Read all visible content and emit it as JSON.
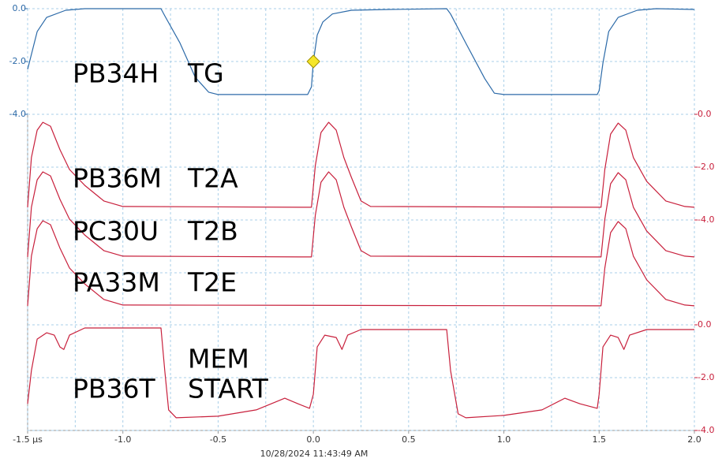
{
  "chart_data": {
    "type": "line",
    "timestamp": "10/28/2024 11:43:49 AM",
    "grid": true,
    "xlim": [
      -1.5,
      2.0
    ],
    "xticks": [
      {
        "value": -1.5,
        "label": "-1.5 μs"
      },
      {
        "value": -1.0,
        "label": "-1.0"
      },
      {
        "value": -0.5,
        "label": "-0.5"
      },
      {
        "value": 0,
        "label": "0.0"
      },
      {
        "value": 0.5,
        "label": "0.5"
      },
      {
        "value": 1.0,
        "label": "1.0"
      },
      {
        "value": 1.5,
        "label": "1.5"
      },
      {
        "value": 2.0,
        "label": "2.0"
      }
    ],
    "y_axes": [
      {
        "side": "left",
        "color": "#2c6aa8",
        "ylim": [
          -4,
          0
        ],
        "yticks": [
          {
            "value": 0,
            "label": "0.0"
          },
          {
            "value": -2,
            "label": "-2.0"
          },
          {
            "value": -4,
            "label": "-4.0"
          }
        ]
      },
      {
        "side": "right",
        "color": "#c8203c",
        "ylim": [
          -4,
          0
        ],
        "yticks": [
          {
            "value": 0,
            "label": "0.0"
          },
          {
            "value": -2,
            "label": "-2.0"
          },
          {
            "value": -4,
            "label": "-4.0"
          }
        ]
      },
      {
        "side": "right",
        "color": "#c8203c",
        "ylim": [
          -4,
          0
        ],
        "yticks": [
          {
            "value": 0,
            "label": "0.0"
          },
          {
            "value": -2,
            "label": "-2.0"
          },
          {
            "value": -4,
            "label": "-4.0"
          }
        ]
      }
    ],
    "series": [
      {
        "name": "PB34H",
        "signal": [
          "TG"
        ],
        "color": "#2c6aa8",
        "axis": 0,
        "x": [
          -1.5,
          -1.45,
          -1.4,
          -1.3,
          -1.2,
          -0.8,
          -0.78,
          -0.7,
          -0.62,
          -0.55,
          -0.5,
          -0.03,
          -0.01,
          0.0,
          0.02,
          0.05,
          0.1,
          0.2,
          0.4,
          0.7,
          0.72,
          0.8,
          0.9,
          0.95,
          1.0,
          1.49,
          1.5,
          1.52,
          1.55,
          1.6,
          1.7,
          1.8,
          2.0
        ],
        "values": [
          -2.3,
          -0.87,
          -0.33,
          -0.06,
          0,
          0,
          -0.27,
          -1.3,
          -2.6,
          -3.16,
          -3.25,
          -3.25,
          -2.96,
          -2.0,
          -1.0,
          -0.5,
          -0.2,
          -0.06,
          -0.03,
          0,
          -0.2,
          -1.3,
          -2.65,
          -3.2,
          -3.25,
          -3.25,
          -3.1,
          -2.06,
          -0.87,
          -0.33,
          -0.06,
          0,
          -0.03
        ]
      },
      {
        "name": "PB36M",
        "signal": [
          "T2A"
        ],
        "color": "#c8203c",
        "axis": 1,
        "x": [
          -1.5,
          -1.48,
          -1.45,
          -1.42,
          -1.38,
          -1.33,
          -1.28,
          -1.2,
          -1.1,
          -1.0,
          -0.01,
          0.01,
          0.04,
          0.08,
          0.12,
          0.16,
          0.2,
          0.25,
          0.3,
          1.51,
          1.53,
          1.56,
          1.6,
          1.64,
          1.68,
          1.75,
          1.85,
          1.95,
          2.0
        ],
        "values": [
          -3.52,
          -1.64,
          -0.6,
          -0.3,
          -0.45,
          -1.34,
          -2.09,
          -2.69,
          -3.28,
          -3.49,
          -3.52,
          -1.94,
          -0.69,
          -0.3,
          -0.6,
          -1.64,
          -2.39,
          -3.28,
          -3.49,
          -3.52,
          -2.09,
          -0.75,
          -0.33,
          -0.6,
          -1.64,
          -2.54,
          -3.28,
          -3.49,
          -3.52
        ]
      },
      {
        "name": "PC30U",
        "signal": [
          "T2B"
        ],
        "color": "#c8203c",
        "axis": 1,
        "x": [
          -1.5,
          -1.48,
          -1.45,
          -1.42,
          -1.38,
          -1.33,
          -1.28,
          -1.2,
          -1.1,
          -1.0,
          -0.01,
          0.01,
          0.04,
          0.08,
          0.12,
          0.16,
          0.2,
          0.25,
          0.3,
          1.51,
          1.53,
          1.56,
          1.6,
          1.64,
          1.68,
          1.75,
          1.85,
          1.95,
          2.0
        ],
        "values": [
          -5.4,
          -3.52,
          -2.48,
          -2.18,
          -2.33,
          -3.22,
          -3.97,
          -4.57,
          -5.16,
          -5.37,
          -5.4,
          -3.82,
          -2.57,
          -2.18,
          -2.48,
          -3.52,
          -4.27,
          -5.16,
          -5.37,
          -5.4,
          -3.97,
          -2.63,
          -2.21,
          -2.48,
          -3.52,
          -4.42,
          -5.16,
          -5.37,
          -5.4
        ]
      },
      {
        "name": "PA33M",
        "signal": [
          "T2E"
        ],
        "color": "#c8203c",
        "axis": 1,
        "x": [
          -1.5,
          -1.48,
          -1.45,
          -1.42,
          -1.38,
          -1.33,
          -1.28,
          -1.2,
          -1.1,
          -1.0,
          1.51,
          1.53,
          1.56,
          1.6,
          1.64,
          1.68,
          1.75,
          1.85,
          1.95,
          2.0
        ],
        "values": [
          -7.25,
          -5.37,
          -4.33,
          -4.03,
          -4.18,
          -5.07,
          -5.82,
          -6.42,
          -7.01,
          -7.22,
          -7.25,
          -5.82,
          -4.48,
          -4.06,
          -4.33,
          -5.37,
          -6.27,
          -7.01,
          -7.22,
          -7.25
        ]
      },
      {
        "name": "PB36T",
        "signal": [
          "MEM",
          "START"
        ],
        "color": "#c8203c",
        "axis": 2,
        "x": [
          -1.5,
          -1.48,
          -1.45,
          -1.4,
          -1.36,
          -1.33,
          -1.31,
          -1.28,
          -1.2,
          -0.8,
          -0.78,
          -0.76,
          -0.72,
          -0.5,
          -0.3,
          -0.15,
          -0.08,
          -0.02,
          0.0,
          0.02,
          0.06,
          0.12,
          0.15,
          0.18,
          0.25,
          0.7,
          0.72,
          0.76,
          0.8,
          1.0,
          1.2,
          1.32,
          1.4,
          1.49,
          1.5,
          1.52,
          1.56,
          1.6,
          1.63,
          1.66,
          1.75,
          2.0
        ],
        "values": [
          -2.99,
          -1.73,
          -0.54,
          -0.3,
          -0.39,
          -0.84,
          -0.93,
          -0.39,
          -0.12,
          -0.12,
          -1.73,
          -3.22,
          -3.52,
          -3.46,
          -3.22,
          -2.78,
          -2.99,
          -3.16,
          -2.63,
          -0.84,
          -0.39,
          -0.48,
          -0.93,
          -0.39,
          -0.18,
          -0.18,
          -1.73,
          -3.37,
          -3.52,
          -3.43,
          -3.22,
          -2.78,
          -2.99,
          -3.16,
          -2.63,
          -0.84,
          -0.39,
          -0.48,
          -0.93,
          -0.39,
          -0.18,
          -0.18
        ]
      }
    ],
    "cursor": {
      "x": 0,
      "y": -2,
      "axis": 0,
      "color": "#f5e62a"
    }
  }
}
